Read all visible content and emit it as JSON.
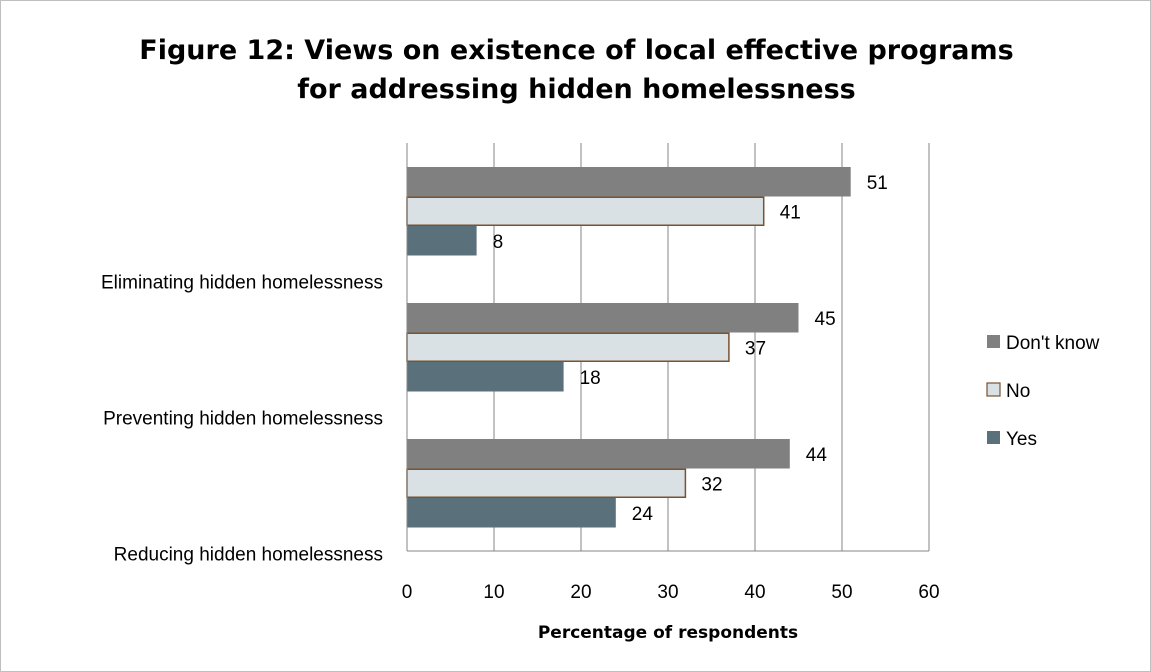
{
  "chart_data": {
    "type": "bar",
    "orientation": "horizontal",
    "title_lines": [
      "Figure 12: Views on existence of local effective programs",
      "for addressing hidden homelessness"
    ],
    "xlabel": "Percentage of respondents",
    "ylabel": "",
    "xlim": [
      0,
      60
    ],
    "xticks": [
      0,
      10,
      20,
      30,
      40,
      50,
      60
    ],
    "grid": "vertical",
    "legend_position": "right",
    "categories": [
      "Eliminating hidden homelessness",
      "Preventing hidden homelessness",
      "Reducing hidden homelessness"
    ],
    "series": [
      {
        "name": "Don't know",
        "values": [
          51,
          45,
          44
        ],
        "color": "#808080"
      },
      {
        "name": "No",
        "values": [
          41,
          37,
          32
        ],
        "color": "#d9e1e4",
        "stroke": "#7a5230"
      },
      {
        "name": "Yes",
        "values": [
          8,
          18,
          24
        ],
        "color": "#5a707a"
      }
    ]
  }
}
